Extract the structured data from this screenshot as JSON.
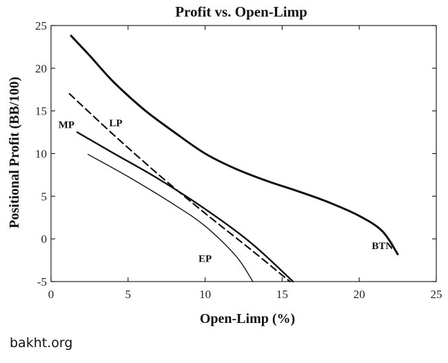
{
  "chart_data": {
    "type": "line",
    "title": "Profit vs. Open-Limp",
    "xlabel": "Open-Limp (%)",
    "ylabel": "Positional Profit (BB/100)",
    "xlim": [
      0,
      25
    ],
    "ylim": [
      -5,
      25
    ],
    "xticks": [
      "0",
      "5",
      "10",
      "15",
      "20",
      "25"
    ],
    "yticks": [
      "-5",
      "0",
      "5",
      "10",
      "15",
      "20",
      "25"
    ],
    "grid": false,
    "legend": "none",
    "series": [
      {
        "name": "BTN",
        "style": "thick-solid",
        "points": [
          [
            1.3,
            23.8
          ],
          [
            2.5,
            21.5
          ],
          [
            4,
            18.5
          ],
          [
            6,
            15.2
          ],
          [
            8,
            12.5
          ],
          [
            10,
            10.0
          ],
          [
            12,
            8.2
          ],
          [
            14,
            6.8
          ],
          [
            16,
            5.6
          ],
          [
            18,
            4.3
          ],
          [
            20,
            2.7
          ],
          [
            21.5,
            0.9
          ],
          [
            22.5,
            -1.8
          ]
        ]
      },
      {
        "name": "LP",
        "style": "dashed",
        "points": [
          [
            1.2,
            17.0
          ],
          [
            4,
            12.3
          ],
          [
            7,
            7.5
          ],
          [
            10,
            3.0
          ],
          [
            13,
            -1.3
          ],
          [
            15.5,
            -5.0
          ]
        ]
      },
      {
        "name": "MP",
        "style": "solid",
        "points": [
          [
            1.7,
            12.5
          ],
          [
            4,
            10.1
          ],
          [
            7,
            7.0
          ],
          [
            10,
            3.5
          ],
          [
            13,
            -0.5
          ],
          [
            15.7,
            -5.0
          ]
        ]
      },
      {
        "name": "EP",
        "style": "thin-solid",
        "points": [
          [
            2.4,
            9.9
          ],
          [
            5,
            7.3
          ],
          [
            8,
            4.0
          ],
          [
            10,
            1.5
          ],
          [
            12,
            -2.0
          ],
          [
            13.1,
            -5.0
          ]
        ]
      }
    ]
  },
  "watermark": "bakht.org"
}
